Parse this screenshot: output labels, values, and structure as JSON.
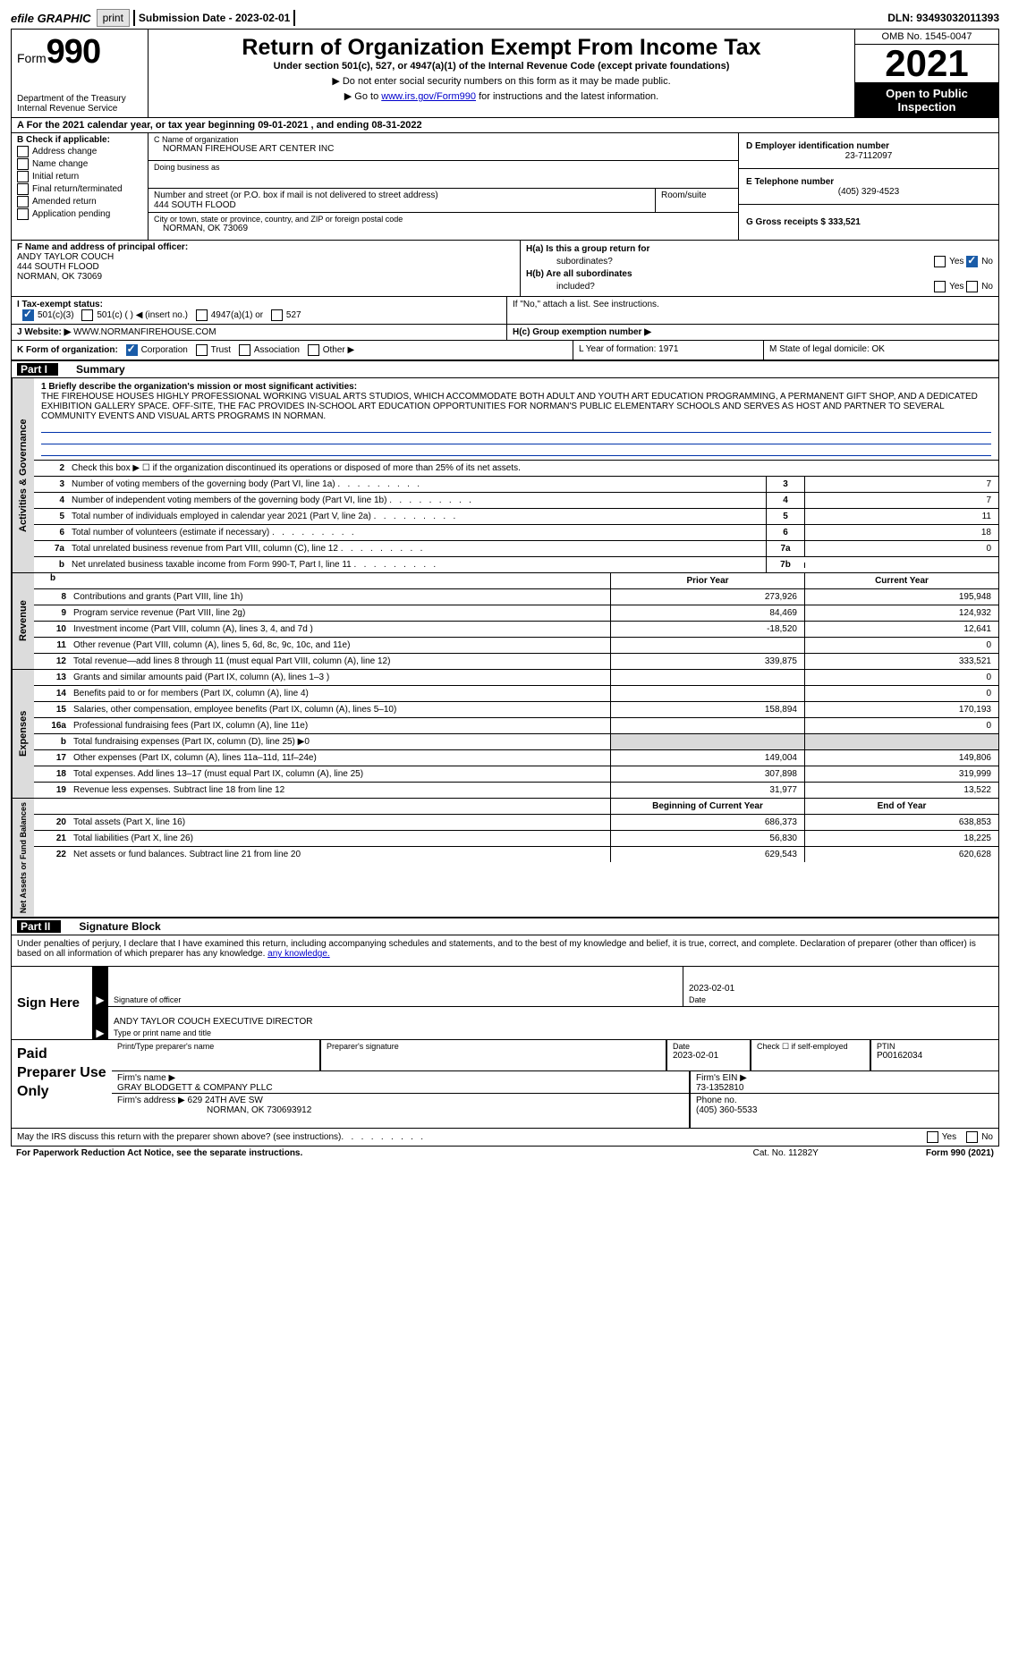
{
  "meta": {
    "efile": "efile GRAPHIC",
    "print": "print",
    "submission_label": "Submission Date - 2023-02-01",
    "dln": "DLN: 93493032011393"
  },
  "header": {
    "form_word": "Form",
    "form_number": "990",
    "title": "Return of Organization Exempt From Income Tax",
    "subtitle": "Under section 501(c), 527, or 4947(a)(1) of the Internal Revenue Code (except private foundations)",
    "line1": "▶ Do not enter social security numbers on this form as it may be made public.",
    "line2_pre": "▶ Go to ",
    "line2_link": "www.irs.gov/Form990",
    "line2_post": " for instructions and the latest information.",
    "department": "Department of the Treasury",
    "service": "Internal Revenue Service",
    "omb": "OMB No. 1545-0047",
    "taxyear": "2021",
    "open": "Open to Public Inspection"
  },
  "sectionA": "A For the 2021 calendar year, or tax year beginning 09-01-2021    , and ending 08-31-2022",
  "sectionB": {
    "title": "B Check if applicable:",
    "opts": [
      "Address change",
      "Name change",
      "Initial return",
      "Final return/terminated",
      "Amended return",
      "Application pending"
    ]
  },
  "sectionC": {
    "name_label": "C Name of organization",
    "name": "NORMAN FIREHOUSE ART CENTER INC",
    "dba_label": "Doing business as",
    "dba": "",
    "street_label": "Number and street (or P.O. box if mail is not delivered to street address)",
    "street": "444 SOUTH FLOOD",
    "suite_label": "Room/suite",
    "city_label": "City or town, state or province, country, and ZIP or foreign postal code",
    "city": "NORMAN, OK  73069"
  },
  "sectionD": {
    "label": "D Employer identification number",
    "value": "23-7112097"
  },
  "sectionE": {
    "label": "E Telephone number",
    "value": "(405) 329-4523"
  },
  "sectionG": {
    "label": "G Gross receipts $",
    "value": "333,521"
  },
  "sectionF": {
    "label": "F  Name and address of principal officer:",
    "line1": "ANDY TAYLOR COUCH",
    "line2": "444 SOUTH FLOOD",
    "line3": "NORMAN, OK  73069"
  },
  "sectionH": {
    "ha1": "H(a)  Is this a group return for",
    "ha2": "subordinates?",
    "hb1": "H(b)  Are all subordinates",
    "hb2": "included?",
    "note": "If \"No,\" attach a list. See instructions.",
    "hc": "H(c)  Group exemption number ▶",
    "yes": "Yes",
    "no": "No"
  },
  "sectionI": {
    "label": "I   Tax-exempt status:",
    "opts": [
      "501(c)(3)",
      "501(c) (  ) ◀ (insert no.)",
      "4947(a)(1) or",
      "527"
    ]
  },
  "sectionJ": {
    "label": "J   Website: ▶",
    "value": "WWW.NORMANFIREHOUSE.COM"
  },
  "sectionK": {
    "label": "K Form of organization:",
    "opts": [
      "Corporation",
      "Trust",
      "Association",
      "Other ▶"
    ]
  },
  "sectionL": "L Year of formation: 1971",
  "sectionM": "M State of legal domicile: OK",
  "part1": {
    "bar": "Part I",
    "bar_title": "Summary",
    "side_ag": "Activities & Governance",
    "side_rev": "Revenue",
    "side_exp": "Expenses",
    "side_na": "Net Assets or Fund Balances",
    "line1_label": "1  Briefly describe the organization's mission or most significant activities:",
    "mission": "THE FIREHOUSE HOUSES HIGHLY PROFESSIONAL WORKING VISUAL ARTS STUDIOS, WHICH ACCOMMODATE BOTH ADULT AND YOUTH ART EDUCATION PROGRAMMING, A PERMANENT GIFT SHOP, AND A DEDICATED EXHIBITION GALLERY SPACE. OFF-SITE, THE FAC PROVIDES IN-SCHOOL ART EDUCATION OPPORTUNITIES FOR NORMAN'S PUBLIC ELEMENTARY SCHOOLS AND SERVES AS HOST AND PARTNER TO SEVERAL COMMUNITY EVENTS AND VISUAL ARTS PROGRAMS IN NORMAN.",
    "ag_rows": [
      {
        "n": "2",
        "t": "Check this box ▶ ☐  if the organization discontinued its operations or disposed of more than 25% of its net assets.",
        "ref": "",
        "v": ""
      },
      {
        "n": "3",
        "t": "Number of voting members of the governing body (Part VI, line 1a)",
        "ref": "3",
        "v": "7"
      },
      {
        "n": "4",
        "t": "Number of independent voting members of the governing body (Part VI, line 1b)",
        "ref": "4",
        "v": "7"
      },
      {
        "n": "5",
        "t": "Total number of individuals employed in calendar year 2021 (Part V, line 2a)",
        "ref": "5",
        "v": "11"
      },
      {
        "n": "6",
        "t": "Total number of volunteers (estimate if necessary)",
        "ref": "6",
        "v": "18"
      },
      {
        "n": "7a",
        "t": "Total unrelated business revenue from Part VIII, column (C), line 12",
        "ref": "7a",
        "v": "0"
      },
      {
        "n": "b",
        "t": "Net unrelated business taxable income from Form 990-T, Part I, line 11",
        "ref": "7b",
        "v": ""
      }
    ],
    "prior_label": "Prior Year",
    "current_label": "Current Year",
    "rev_rows": [
      {
        "n": "8",
        "t": "Contributions and grants (Part VIII, line 1h)",
        "p": "273,926",
        "c": "195,948"
      },
      {
        "n": "9",
        "t": "Program service revenue (Part VIII, line 2g)",
        "p": "84,469",
        "c": "124,932"
      },
      {
        "n": "10",
        "t": "Investment income (Part VIII, column (A), lines 3, 4, and 7d )",
        "p": "-18,520",
        "c": "12,641"
      },
      {
        "n": "11",
        "t": "Other revenue (Part VIII, column (A), lines 5, 6d, 8c, 9c, 10c, and 11e)",
        "p": "",
        "c": "0"
      },
      {
        "n": "12",
        "t": "Total revenue—add lines 8 through 11 (must equal Part VIII, column (A), line 12)",
        "p": "339,875",
        "c": "333,521"
      }
    ],
    "exp_rows": [
      {
        "n": "13",
        "t": "Grants and similar amounts paid (Part IX, column (A), lines 1–3 )",
        "p": "",
        "c": "0"
      },
      {
        "n": "14",
        "t": "Benefits paid to or for members (Part IX, column (A), line 4)",
        "p": "",
        "c": "0"
      },
      {
        "n": "15",
        "t": "Salaries, other compensation, employee benefits (Part IX, column (A), lines 5–10)",
        "p": "158,894",
        "c": "170,193"
      },
      {
        "n": "16a",
        "t": "Professional fundraising fees (Part IX, column (A), line 11e)",
        "p": "",
        "c": "0"
      },
      {
        "n": "b",
        "t": "Total fundraising expenses (Part IX, column (D), line 25) ▶0",
        "p": "",
        "c": "",
        "shade": true
      },
      {
        "n": "17",
        "t": "Other expenses (Part IX, column (A), lines 11a–11d, 11f–24e)",
        "p": "149,004",
        "c": "149,806"
      },
      {
        "n": "18",
        "t": "Total expenses. Add lines 13–17 (must equal Part IX, column (A), line 25)",
        "p": "307,898",
        "c": "319,999"
      },
      {
        "n": "19",
        "t": "Revenue less expenses. Subtract line 18 from line 12",
        "p": "31,977",
        "c": "13,522"
      }
    ],
    "begin_label": "Beginning of Current Year",
    "end_label": "End of Year",
    "na_rows": [
      {
        "n": "20",
        "t": "Total assets (Part X, line 16)",
        "p": "686,373",
        "c": "638,853"
      },
      {
        "n": "21",
        "t": "Total liabilities (Part X, line 26)",
        "p": "56,830",
        "c": "18,225"
      },
      {
        "n": "22",
        "t": "Net assets or fund balances. Subtract line 21 from line 20",
        "p": "629,543",
        "c": "620,628"
      }
    ]
  },
  "part2": {
    "bar": "Part II",
    "bar_title": "Signature Block",
    "declaration": "Under penalties of perjury, I declare that I have examined this return, including accompanying schedules and statements, and to the best of my knowledge and belief, it is true, correct, and complete. Declaration of preparer (other than officer) is based on all information of which preparer has any knowledge.",
    "sign_here": "Sign Here",
    "sig_officer": "Signature of officer",
    "sig_date": "2023-02-01",
    "date_label": "Date",
    "officer_name": "ANDY TAYLOR COUCH  EXECUTIVE DIRECTOR",
    "type_label": "Type or print name and title",
    "paid_label": "Paid Preparer Use Only",
    "prep_name_label": "Print/Type preparer's name",
    "prep_sig_label": "Preparer's signature",
    "prep_date_label": "Date",
    "prep_date": "2023-02-01",
    "prep_check_label": "Check ☐ if self-employed",
    "ptin_label": "PTIN",
    "ptin": "P00162034",
    "firm_name_label": "Firm's name    ▶",
    "firm_name": "GRAY BLODGETT & COMPANY PLLC",
    "firm_ein_label": "Firm's EIN ▶",
    "firm_ein": "73-1352810",
    "firm_addr_label": "Firm's address ▶",
    "firm_addr1": "629 24TH AVE SW",
    "firm_addr2": "NORMAN, OK  730693912",
    "phone_label": "Phone no.",
    "phone": "(405) 360-5533",
    "discuss": "May the IRS discuss this return with the preparer shown above? (see instructions)",
    "yes": "Yes",
    "no": "No"
  },
  "footer": {
    "left": "For Paperwork Reduction Act Notice, see the separate instructions.",
    "mid": "Cat. No. 11282Y",
    "right": "Form 990 (2021)"
  }
}
